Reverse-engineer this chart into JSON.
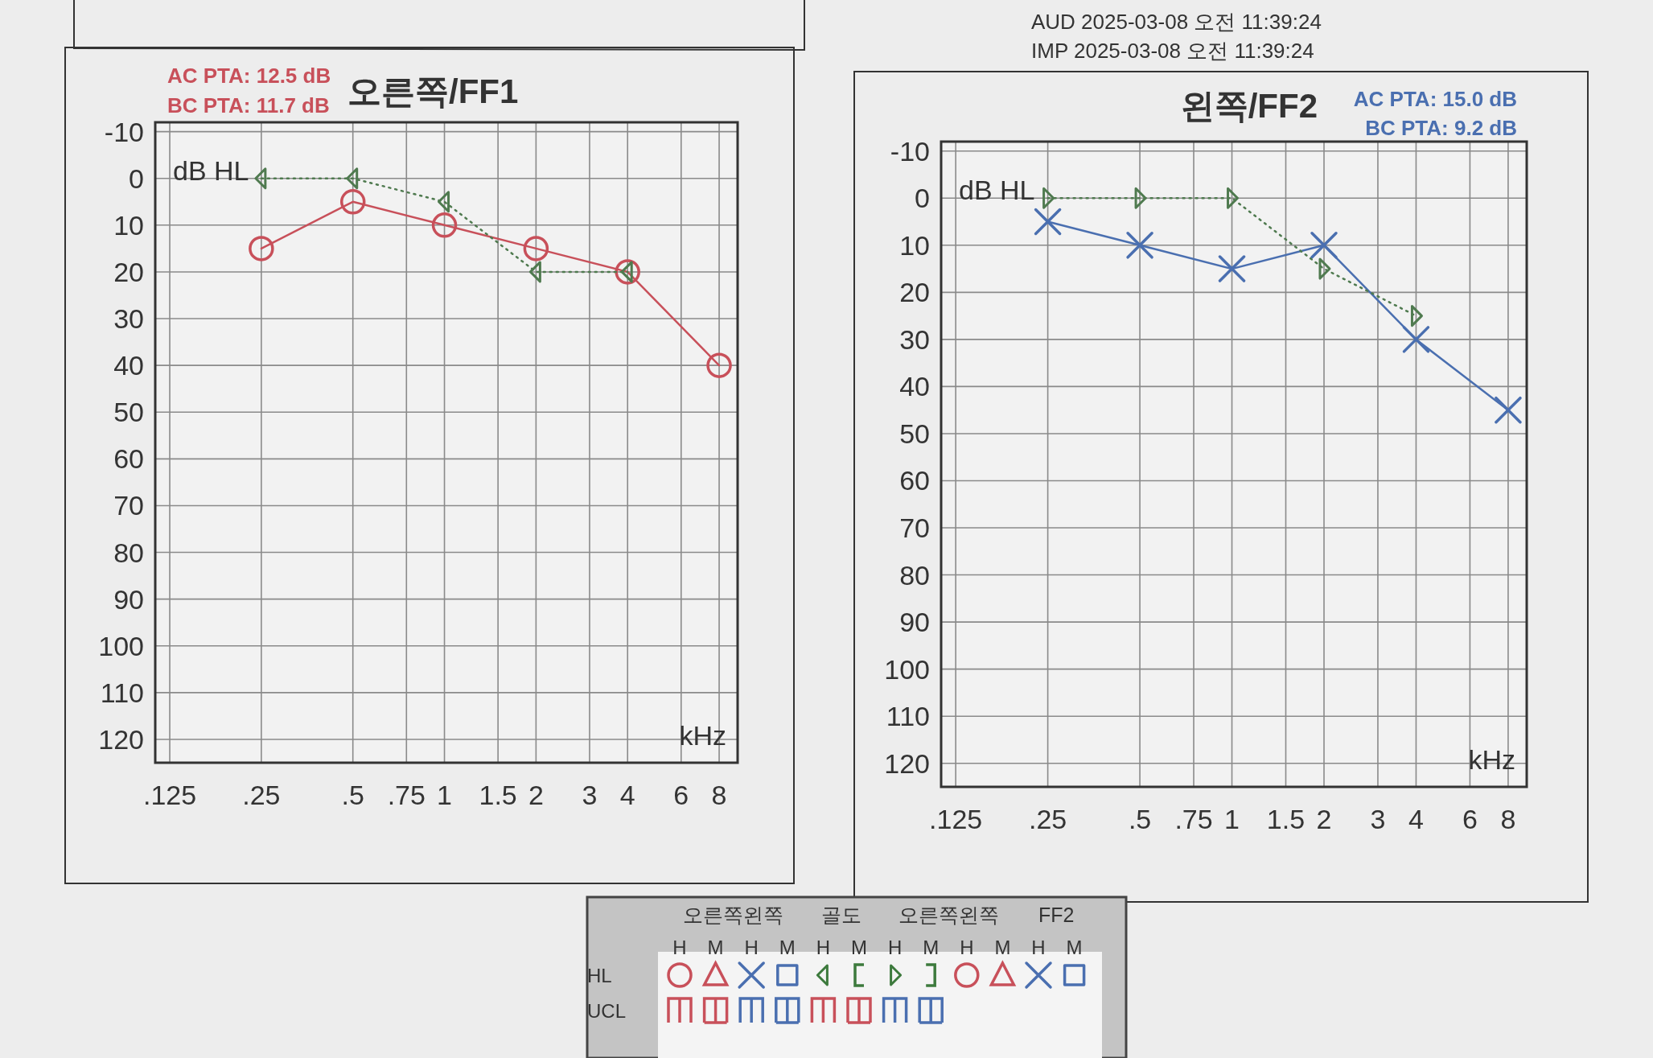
{
  "chart_data": [
    {
      "type": "other",
      "annotations": [
        "AUD 2025-03-08 오전 11:39:24",
        "IMP 2025-03-08 오전 11:39:24"
      ]
    },
    {
      "type": "line",
      "title": "오른쪽/FF1",
      "annotations": [
        "AC PTA: 12.5 dB",
        "BC PTA: 11.7 dB"
      ],
      "xlabel": "kHz",
      "ylabel": "dB HL",
      "log": "x",
      "xlim": [
        0.112,
        9.2
      ],
      "ylim": [
        125,
        -12
      ],
      "grid": true,
      "xticks": [
        {
          "value": 0.125,
          "label": ".125"
        },
        {
          "value": 0.25,
          "label": ".25"
        },
        {
          "value": 0.5,
          "label": ".5"
        },
        {
          "value": 0.75,
          "label": ".75"
        },
        1,
        {
          "value": 1.5,
          "label": "1.5"
        },
        2,
        3,
        4,
        6,
        8
      ],
      "yticks": [
        -10,
        0,
        10,
        20,
        30,
        40,
        50,
        60,
        70,
        80,
        90,
        100,
        110,
        120
      ],
      "series": [
        {
          "color": "#c8505a",
          "x": [
            0.25,
            0.5,
            1,
            2,
            4,
            8
          ],
          "values": [
            15,
            5,
            10,
            15,
            20,
            40
          ],
          "marker": "circle",
          "line_style": "solid"
        },
        {
          "color": "#4f7a4f",
          "x": [
            0.25,
            0.5,
            1,
            2,
            4
          ],
          "values": [
            0,
            0,
            5,
            20,
            20
          ],
          "marker": "triangle",
          "line_style": "dotted"
        }
      ]
    },
    {
      "type": "line",
      "title": "왼쪽/FF2",
      "annotations": [
        "AC PTA: 15.0 dB",
        "BC PTA: 9.2 dB"
      ],
      "xlabel": "kHz",
      "ylabel": "dB HL",
      "log": "x",
      "xlim": [
        0.112,
        9.2
      ],
      "ylim": [
        125,
        -12
      ],
      "grid": true,
      "xticks": [
        {
          "value": 0.125,
          "label": ".125"
        },
        {
          "value": 0.25,
          "label": ".25"
        },
        {
          "value": 0.5,
          "label": ".5"
        },
        {
          "value": 0.75,
          "label": ".75"
        },
        1,
        {
          "value": 1.5,
          "label": "1.5"
        },
        2,
        3,
        4,
        6,
        8
      ],
      "yticks": [
        -10,
        0,
        10,
        20,
        30,
        40,
        50,
        60,
        70,
        80,
        90,
        100,
        110,
        120
      ],
      "series": [
        {
          "color": "#4a6fb0",
          "x": [
            0.25,
            0.5,
            1,
            2,
            4,
            8
          ],
          "values": [
            5,
            10,
            15,
            10,
            30,
            45
          ],
          "marker": "cross",
          "line_style": "solid"
        },
        {
          "color": "#4f7a4f",
          "x": [
            0.25,
            0.5,
            1,
            2,
            4
          ],
          "values": [
            0,
            0,
            0,
            15,
            25
          ],
          "marker": "triangle",
          "line_style": "dotted"
        }
      ]
    },
    {
      "type": "other",
      "annotations": [
        "오른쪽왼쪽",
        "골도",
        "오른쪽왼쪽",
        "FF2",
        "H",
        "M",
        "H",
        "M",
        "H",
        "M",
        "H",
        "M",
        "H",
        "M",
        "H",
        "M",
        "HL",
        "UCL"
      ]
    }
  ]
}
